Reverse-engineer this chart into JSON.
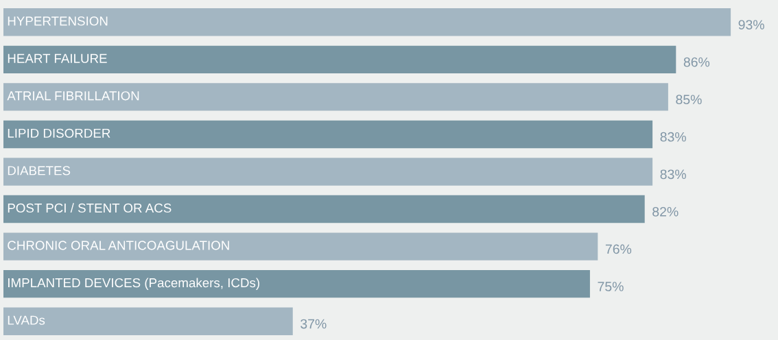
{
  "chart_data": {
    "type": "bar",
    "orientation": "horizontal",
    "categories": [
      "HYPERTENSION",
      "HEART FAILURE",
      "ATRIAL FIBRILLATION",
      "LIPID DISORDER",
      "DIABETES",
      "POST PCI / STENT OR ACS",
      "CHRONIC ORAL ANTICOAGULATION",
      "IMPLANTED DEVICES (Pacemakers, ICDs)",
      "LVADs"
    ],
    "values": [
      93,
      86,
      85,
      83,
      83,
      82,
      76,
      75,
      37
    ],
    "value_labels": [
      "93%",
      "86%",
      "85%",
      "83%",
      "83%",
      "82%",
      "76%",
      "75%",
      "37%"
    ],
    "colors": [
      "#a3b6c2",
      "#7896a3",
      "#a3b6c2",
      "#7896a3",
      "#a3b6c2",
      "#7896a3",
      "#a3b6c2",
      "#7896a3",
      "#a3b6c2"
    ],
    "data_labels": true
  }
}
